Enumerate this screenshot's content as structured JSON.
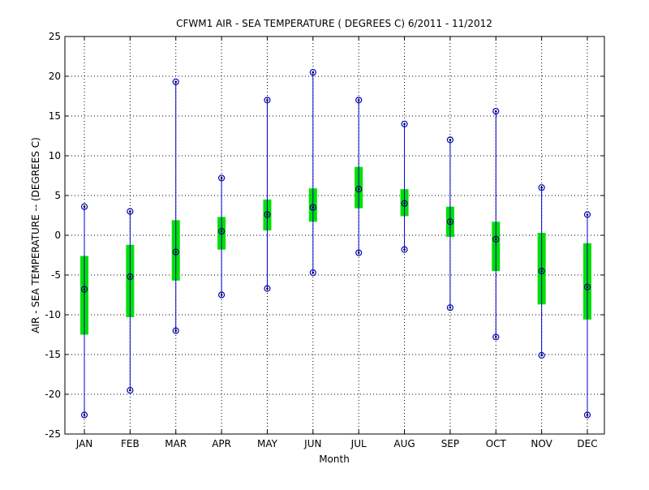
{
  "chart_data": {
    "type": "box",
    "title": "CFWM1  AIR - SEA TEMPERATURE ( DEGREES C) 6/2011 - 11/2012",
    "xlabel": "Month",
    "ylabel": "AIR - SEA TEMPERATURE -- (DEGREES C)",
    "ylim": [
      -25,
      25
    ],
    "yticks": [
      -25,
      -20,
      -15,
      -10,
      -5,
      0,
      5,
      10,
      15,
      20,
      25
    ],
    "grid": true,
    "categories": [
      "JAN",
      "FEB",
      "MAR",
      "APR",
      "MAY",
      "JUN",
      "JUL",
      "AUG",
      "SEP",
      "OCT",
      "NOV",
      "DEC"
    ],
    "max": [
      3.6,
      3.0,
      19.3,
      7.2,
      17.0,
      20.5,
      17.0,
      14.0,
      12.0,
      15.6,
      6.0,
      2.6
    ],
    "min": [
      -22.6,
      -19.5,
      -12.0,
      -7.5,
      -6.7,
      -4.7,
      -2.2,
      -1.8,
      -9.1,
      -12.8,
      -15.1,
      -22.6
    ],
    "median": [
      -6.8,
      -5.2,
      -2.1,
      0.5,
      2.6,
      3.5,
      5.8,
      4.0,
      1.7,
      -0.5,
      -4.5,
      -6.5
    ],
    "box_upper": [
      -2.6,
      -1.2,
      1.9,
      2.3,
      4.5,
      5.9,
      8.6,
      5.8,
      3.6,
      1.7,
      0.3,
      -1.0
    ],
    "box_lower": [
      -12.5,
      -10.3,
      -5.7,
      -1.8,
      0.6,
      1.7,
      3.4,
      2.4,
      -0.2,
      -4.5,
      -8.7,
      -10.6
    ],
    "colors": {
      "whisker": "#0000cc",
      "box": "#00e000",
      "marker": "#000080"
    }
  }
}
